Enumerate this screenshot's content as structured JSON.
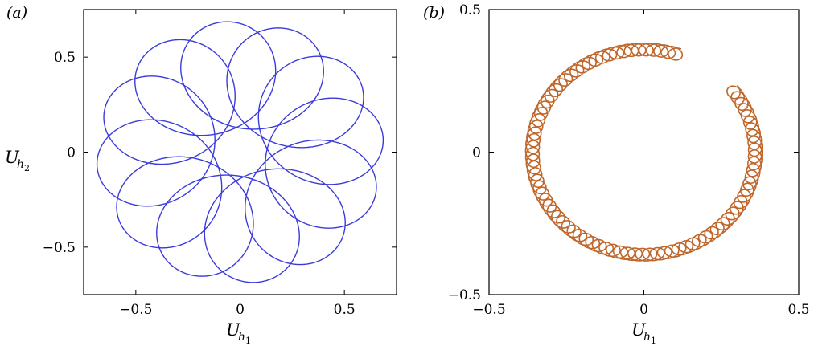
{
  "chart_data": [
    {
      "type": "line",
      "panel_label": "(a)",
      "xlabel": {
        "base": "U",
        "sub": "h",
        "subsub": "1"
      },
      "ylabel": {
        "base": "U",
        "sub": "h",
        "subsub": "2"
      },
      "xlim": [
        -0.75,
        0.75
      ],
      "ylim": [
        -0.75,
        0.75
      ],
      "xticks": [
        -0.5,
        0,
        0.5
      ],
      "yticks": [
        -0.5,
        0,
        0.5
      ],
      "xtick_labels": [
        "−0.5",
        "0",
        "0.5"
      ],
      "ytick_labels": [
        "−0.5",
        "0",
        "0.5"
      ],
      "grid": false,
      "series": [
        {
          "color": "#3b3bdc",
          "curve": "precessing ellipse (rosette)",
          "outer_radius": 0.69,
          "inner_radius": 0.125,
          "lobes": 12,
          "start": [
            0.69,
            0.09
          ]
        }
      ]
    },
    {
      "type": "line",
      "panel_label": "(b)",
      "xlabel": {
        "base": "U",
        "sub": "h",
        "subsub": "1"
      },
      "ylabel": null,
      "xlim": [
        -0.5,
        0.5
      ],
      "ylim": [
        -0.5,
        0.5
      ],
      "xticks": [
        -0.5,
        0,
        0.5
      ],
      "yticks": [
        -0.5,
        0,
        0.5
      ],
      "xtick_labels": [
        "−0.5",
        "0",
        "0.5"
      ],
      "ytick_labels": [
        "−0.5",
        "0",
        "0.5"
      ],
      "grid": false,
      "series": [
        {
          "color": "#c0662a",
          "curve": "helical coil along a circular arc",
          "arc_radius": 0.36,
          "coil_radius": 0.022,
          "coils": 85,
          "start": [
            0.12,
            0.36
          ],
          "end": [
            0.27,
            0.21
          ],
          "direction": "counter-clockwise"
        }
      ]
    }
  ]
}
